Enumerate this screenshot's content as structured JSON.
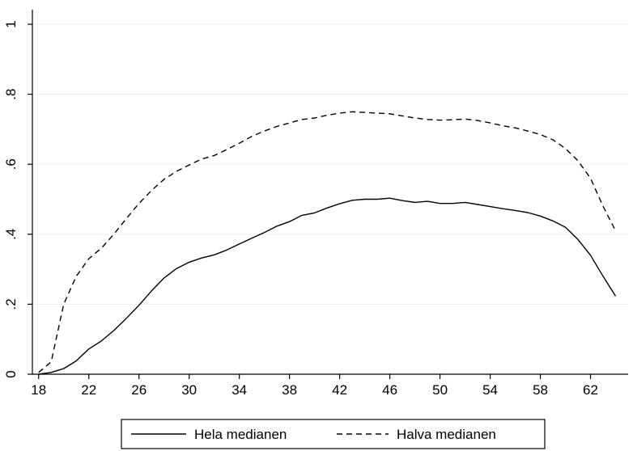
{
  "chart_data": {
    "type": "line",
    "title": "",
    "xlabel": "",
    "ylabel": "",
    "xlim": [
      17.5,
      65
    ],
    "ylim": [
      0,
      1
    ],
    "x_ticks": [
      18,
      22,
      26,
      30,
      34,
      38,
      42,
      46,
      50,
      54,
      58,
      62
    ],
    "x_tick_labels": [
      "18",
      "22",
      "26",
      "30",
      "34",
      "38",
      "42",
      "46",
      "50",
      "54",
      "58",
      "62"
    ],
    "y_ticks": [
      0,
      0.2,
      0.4,
      0.6,
      0.8,
      1
    ],
    "y_tick_labels": [
      "0",
      ".2",
      ".4",
      ".6",
      ".8",
      "1"
    ],
    "grid": "horizontal",
    "legend_position": "bottom",
    "x": [
      18,
      19,
      20,
      21,
      22,
      23,
      24,
      25,
      26,
      27,
      28,
      29,
      30,
      31,
      32,
      33,
      34,
      35,
      36,
      37,
      38,
      39,
      40,
      41,
      42,
      43,
      44,
      45,
      46,
      47,
      48,
      49,
      50,
      51,
      52,
      53,
      54,
      55,
      56,
      57,
      58,
      59,
      60,
      61,
      62,
      63,
      64
    ],
    "series": [
      {
        "name": "Hela medianen",
        "style": "solid",
        "color": "#000000",
        "values": [
          0.0,
          0.005,
          0.016,
          0.038,
          0.072,
          0.095,
          0.125,
          0.16,
          0.197,
          0.238,
          0.275,
          0.302,
          0.32,
          0.332,
          0.341,
          0.355,
          0.372,
          0.389,
          0.405,
          0.423,
          0.436,
          0.454,
          0.461,
          0.475,
          0.487,
          0.497,
          0.5,
          0.5,
          0.503,
          0.496,
          0.491,
          0.494,
          0.488,
          0.488,
          0.491,
          0.485,
          0.479,
          0.473,
          0.468,
          0.462,
          0.452,
          0.438,
          0.42,
          0.385,
          0.34,
          0.28,
          0.223
        ]
      },
      {
        "name": "Halva medianen",
        "style": "dashed",
        "color": "#000000",
        "values": [
          0.005,
          0.035,
          0.2,
          0.28,
          0.33,
          0.36,
          0.4,
          0.445,
          0.488,
          0.525,
          0.557,
          0.58,
          0.598,
          0.615,
          0.625,
          0.642,
          0.66,
          0.68,
          0.695,
          0.708,
          0.718,
          0.728,
          0.732,
          0.74,
          0.746,
          0.75,
          0.748,
          0.746,
          0.744,
          0.738,
          0.732,
          0.728,
          0.726,
          0.727,
          0.729,
          0.725,
          0.718,
          0.71,
          0.704,
          0.695,
          0.685,
          0.67,
          0.645,
          0.61,
          0.56,
          0.48,
          0.41
        ]
      }
    ]
  }
}
